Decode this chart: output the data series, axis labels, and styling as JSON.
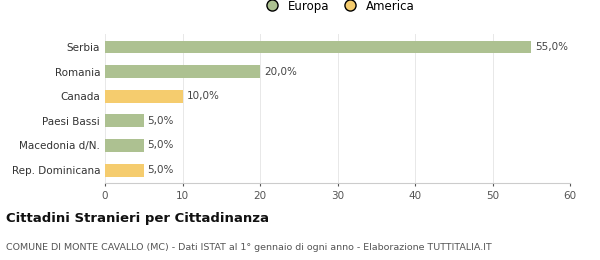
{
  "categories": [
    "Serbia",
    "Romania",
    "Canada",
    "Paesi Bassi",
    "Macedonia d/N.",
    "Rep. Dominicana"
  ],
  "values": [
    55.0,
    20.0,
    10.0,
    5.0,
    5.0,
    5.0
  ],
  "colors": [
    "#adc191",
    "#adc191",
    "#f5cc6e",
    "#adc191",
    "#adc191",
    "#f5cc6e"
  ],
  "labels": [
    "55,0%",
    "20,0%",
    "10,0%",
    "5,0%",
    "5,0%",
    "5,0%"
  ],
  "legend": [
    {
      "label": "Europa",
      "color": "#adc191"
    },
    {
      "label": "America",
      "color": "#f5cc6e"
    }
  ],
  "xlim": [
    0,
    60
  ],
  "xticks": [
    0,
    10,
    20,
    30,
    40,
    50,
    60
  ],
  "title_bold": "Cittadini Stranieri per Cittadinanza",
  "subtitle": "COMUNE DI MONTE CAVALLO (MC) - Dati ISTAT al 1° gennaio di ogni anno - Elaborazione TUTTITALIA.IT",
  "background_color": "#ffffff",
  "grid_color": "#e8e8e8",
  "title_fontsize": 9.5,
  "subtitle_fontsize": 6.8,
  "label_fontsize": 7.5,
  "tick_fontsize": 7.5,
  "legend_fontsize": 8.5
}
